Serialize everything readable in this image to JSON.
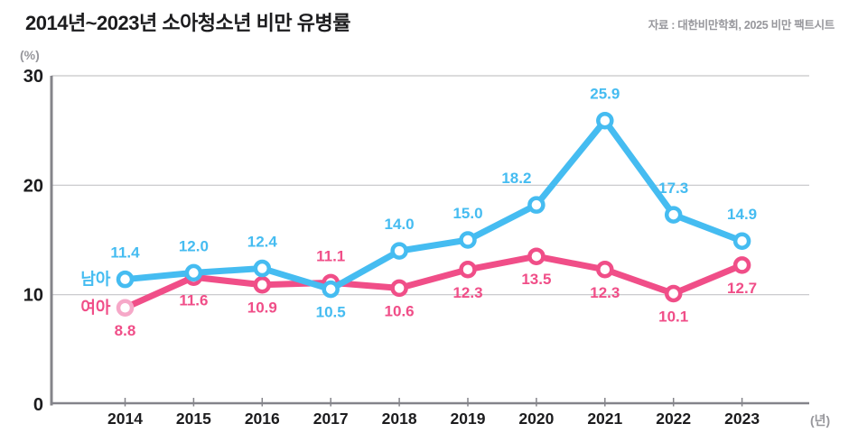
{
  "title": "2014년~2023년 소아청소년 비만 유병률",
  "source": "자료 : 대한비만학회, 2025 비만 팩트시트",
  "chart_data": {
    "type": "line",
    "title": "2014년~2023년 소아청소년 비만 유병률",
    "x_unit": "(년)",
    "y_unit": "(%)",
    "categories": [
      "2014",
      "2015",
      "2016",
      "2017",
      "2018",
      "2019",
      "2020",
      "2021",
      "2022",
      "2023"
    ],
    "yticks": [
      0,
      10,
      20,
      30
    ],
    "ylim": [
      0,
      30
    ],
    "grid": true,
    "legend_position": "inline-left-of-first-point",
    "series": [
      {
        "name": "남아",
        "color": "#45BCF1",
        "values": [
          11.4,
          12.0,
          12.4,
          10.5,
          14.0,
          15.0,
          18.2,
          25.9,
          17.3,
          14.9
        ]
      },
      {
        "name": "여아",
        "color": "#F04E88",
        "values": [
          8.8,
          11.6,
          10.9,
          11.1,
          10.6,
          12.3,
          13.5,
          12.3,
          10.1,
          12.7
        ]
      }
    ],
    "colors": {
      "grid": "#c5c5c8",
      "axis": "#84848a",
      "text_dark": "#1c1c1e",
      "text_gray": "#97979c",
      "marker_fill": "#ffffff",
      "faded_first_girl_marker_stroke": "#f6a8c8"
    }
  }
}
